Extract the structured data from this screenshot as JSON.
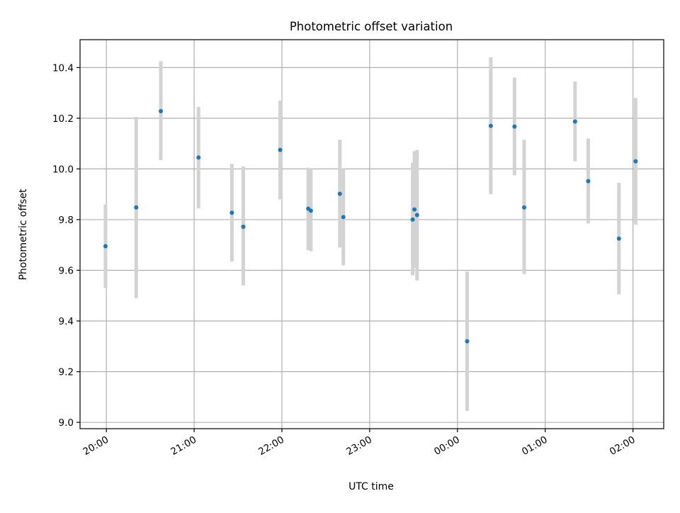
{
  "chart_data": {
    "type": "scatter",
    "title": "Photometric offset variation",
    "xlabel": "UTC time",
    "ylabel": "Photometric offset",
    "x_unit": "hours since 20:00 UTC",
    "xlim": [
      -0.3,
      6.35
    ],
    "ylim": [
      8.975,
      10.51
    ],
    "x_ticks": [
      {
        "value": 0,
        "label": "20:00"
      },
      {
        "value": 1,
        "label": "21:00"
      },
      {
        "value": 2,
        "label": "22:00"
      },
      {
        "value": 3,
        "label": "23:00"
      },
      {
        "value": 4,
        "label": "00:00"
      },
      {
        "value": 5,
        "label": "01:00"
      },
      {
        "value": 6,
        "label": "02:00"
      }
    ],
    "y_ticks": [
      {
        "value": 9.0,
        "label": "9.0"
      },
      {
        "value": 9.2,
        "label": "9.2"
      },
      {
        "value": 9.4,
        "label": "9.4"
      },
      {
        "value": 9.6,
        "label": "9.6"
      },
      {
        "value": 9.8,
        "label": "9.8"
      },
      {
        "value": 10.0,
        "label": "10.0"
      },
      {
        "value": 10.2,
        "label": "10.2"
      },
      {
        "value": 10.4,
        "label": "10.4"
      }
    ],
    "grid": true,
    "point_color": "#1f77b4",
    "errorbar_color": "#d3d3d3",
    "points": [
      {
        "x": -0.01,
        "y": 9.695,
        "low": 9.53,
        "high": 9.86
      },
      {
        "x": 0.34,
        "y": 9.848,
        "low": 9.49,
        "high": 10.205
      },
      {
        "x": 0.62,
        "y": 10.228,
        "low": 10.035,
        "high": 10.425
      },
      {
        "x": 1.05,
        "y": 10.045,
        "low": 9.845,
        "high": 10.245
      },
      {
        "x": 1.43,
        "y": 9.827,
        "low": 9.635,
        "high": 10.02
      },
      {
        "x": 1.56,
        "y": 9.772,
        "low": 9.54,
        "high": 10.01
      },
      {
        "x": 1.98,
        "y": 10.075,
        "low": 9.88,
        "high": 10.27
      },
      {
        "x": 2.3,
        "y": 9.843,
        "low": 9.68,
        "high": 10.005
      },
      {
        "x": 2.33,
        "y": 9.835,
        "low": 9.675,
        "high": 10.0
      },
      {
        "x": 2.66,
        "y": 9.902,
        "low": 9.69,
        "high": 10.115
      },
      {
        "x": 2.7,
        "y": 9.81,
        "low": 9.62,
        "high": 10.0
      },
      {
        "x": 3.49,
        "y": 9.8,
        "low": 9.58,
        "high": 10.025
      },
      {
        "x": 3.51,
        "y": 9.84,
        "low": 9.61,
        "high": 10.07
      },
      {
        "x": 3.54,
        "y": 9.818,
        "low": 9.56,
        "high": 10.075
      },
      {
        "x": 4.11,
        "y": 9.32,
        "low": 9.045,
        "high": 9.595
      },
      {
        "x": 4.38,
        "y": 10.17,
        "low": 9.9,
        "high": 10.44
      },
      {
        "x": 4.65,
        "y": 10.167,
        "low": 9.975,
        "high": 10.36
      },
      {
        "x": 4.76,
        "y": 9.848,
        "low": 9.585,
        "high": 10.115
      },
      {
        "x": 5.34,
        "y": 10.187,
        "low": 10.03,
        "high": 10.345
      },
      {
        "x": 5.49,
        "y": 9.952,
        "low": 9.785,
        "high": 10.12
      },
      {
        "x": 5.84,
        "y": 9.725,
        "low": 9.505,
        "high": 9.945
      },
      {
        "x": 6.03,
        "y": 10.03,
        "low": 9.78,
        "high": 10.28
      }
    ]
  }
}
